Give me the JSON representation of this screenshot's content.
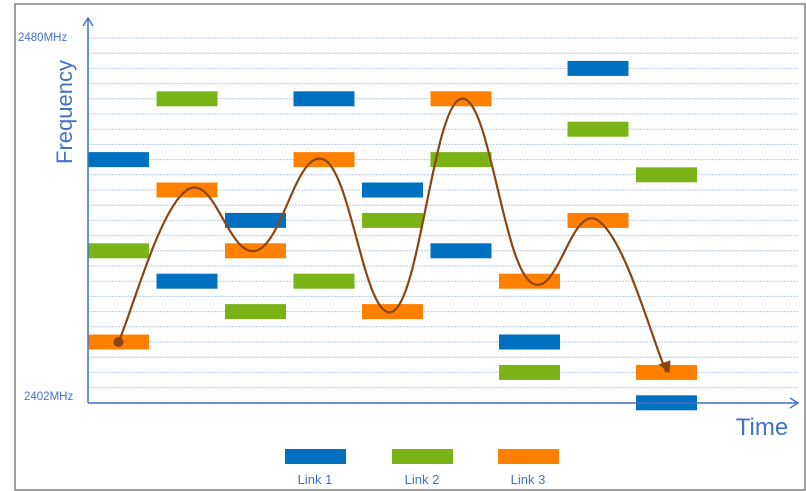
{
  "axes": {
    "y_title": "Frequency",
    "x_title": "Time",
    "y_top_label": "2480MHz",
    "y_bottom_label": "2402MHz"
  },
  "colors": {
    "axis": "#4472c4",
    "gridline": "#b8cce4",
    "border": "#808080",
    "curve": "#8b4513",
    "link1": "#0070c0",
    "link2": "#7ab317",
    "link3": "#ff8000"
  },
  "legend": [
    {
      "label": "Link 1",
      "color": "#0070c0"
    },
    {
      "label": "Link 2",
      "color": "#7ab317"
    },
    {
      "label": "Link 3",
      "color": "#ff8000"
    }
  ],
  "chart_data": {
    "type": "frequency-hopping-diagram",
    "time_slots": 9,
    "channel_rows": 24,
    "hops": [
      {
        "link": "Link 1",
        "slot": 0,
        "channel": 16
      },
      {
        "link": "Link 2",
        "slot": 0,
        "channel": 10
      },
      {
        "link": "Link 3",
        "slot": 0,
        "channel": 4
      },
      {
        "link": "Link 2",
        "slot": 1,
        "channel": 20
      },
      {
        "link": "Link 3",
        "slot": 1,
        "channel": 14
      },
      {
        "link": "Link 1",
        "slot": 1,
        "channel": 8
      },
      {
        "link": "Link 1",
        "slot": 2,
        "channel": 12
      },
      {
        "link": "Link 3",
        "slot": 2,
        "channel": 10
      },
      {
        "link": "Link 2",
        "slot": 2,
        "channel": 6
      },
      {
        "link": "Link 1",
        "slot": 3,
        "channel": 20
      },
      {
        "link": "Link 3",
        "slot": 3,
        "channel": 16
      },
      {
        "link": "Link 2",
        "slot": 3,
        "channel": 8
      },
      {
        "link": "Link 1",
        "slot": 4,
        "channel": 14
      },
      {
        "link": "Link 2",
        "slot": 4,
        "channel": 12
      },
      {
        "link": "Link 3",
        "slot": 4,
        "channel": 6
      },
      {
        "link": "Link 3",
        "slot": 5,
        "channel": 20
      },
      {
        "link": "Link 2",
        "slot": 5,
        "channel": 16
      },
      {
        "link": "Link 1",
        "slot": 5,
        "channel": 10
      },
      {
        "link": "Link 3",
        "slot": 6,
        "channel": 8
      },
      {
        "link": "Link 1",
        "slot": 6,
        "channel": 4
      },
      {
        "link": "Link 2",
        "slot": 6,
        "channel": 2
      },
      {
        "link": "Link 1",
        "slot": 7,
        "channel": 22
      },
      {
        "link": "Link 2",
        "slot": 7,
        "channel": 18
      },
      {
        "link": "Link 3",
        "slot": 7,
        "channel": 12
      },
      {
        "link": "Link 2",
        "slot": 8,
        "channel": 15
      },
      {
        "link": "Link 3",
        "slot": 8,
        "channel": 2
      },
      {
        "link": "Link 1",
        "slot": 8,
        "channel": 0
      }
    ],
    "highlighted_path": {
      "link": "Link 3",
      "hops": [
        {
          "slot": 0,
          "channel": 4
        },
        {
          "slot": 1,
          "channel": 14
        },
        {
          "slot": 2,
          "channel": 10
        },
        {
          "slot": 3,
          "channel": 16
        },
        {
          "slot": 4,
          "channel": 6
        },
        {
          "slot": 5,
          "channel": 20
        },
        {
          "slot": 6,
          "channel": 8
        },
        {
          "slot": 7,
          "channel": 12
        },
        {
          "slot": 8,
          "channel": 2
        }
      ]
    }
  }
}
